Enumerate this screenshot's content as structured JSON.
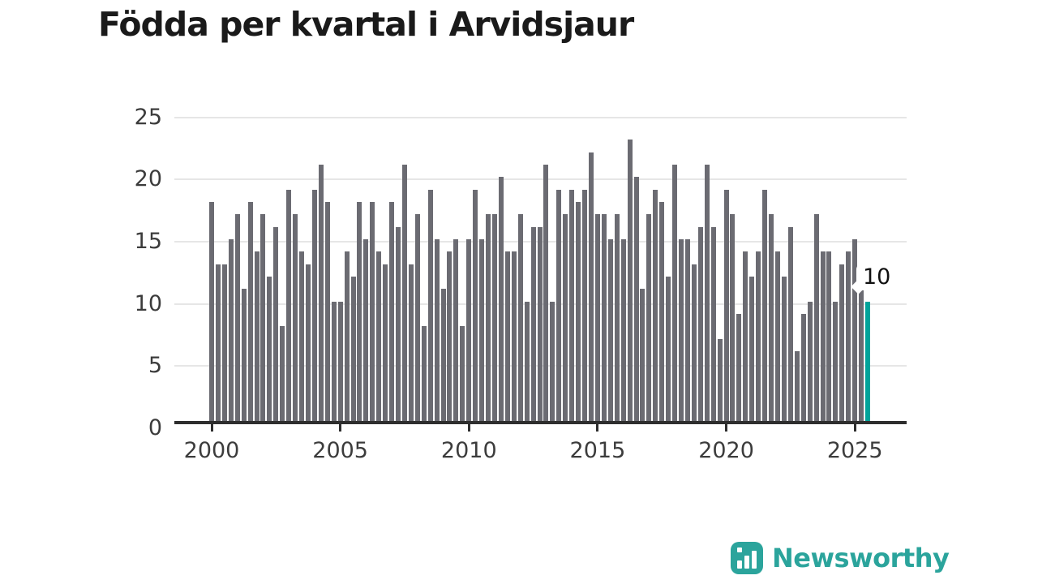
{
  "title": "Födda per kvartal i Arvidsjaur",
  "annotation": {
    "label": "10"
  },
  "logo": {
    "text": "Newsworthy"
  },
  "colors": {
    "bar": "#6b6b72",
    "highlight": "#00a39a",
    "brand": "#2ba49c",
    "axis": "#2e2e2e",
    "grid": "#e6e6e6"
  },
  "chart_data": {
    "type": "bar",
    "title": "Födda per kvartal i Arvidsjaur",
    "x_start": "2000 Q1",
    "x_end": "2025 Q3",
    "frequency": "quarterly",
    "xticks": [
      "2000",
      "2005",
      "2010",
      "2015",
      "2020",
      "2025"
    ],
    "yticks": [
      25,
      20,
      15,
      10,
      5,
      0
    ],
    "ylim": [
      0,
      25
    ],
    "grid": "horizontal",
    "legend": "none",
    "highlighted_last_bar": {
      "period": "2025 Q3",
      "value": 10
    },
    "series": [
      {
        "name": "Födda",
        "values": [
          18,
          13,
          13,
          15,
          17,
          11,
          18,
          14,
          17,
          12,
          16,
          8,
          19,
          17,
          14,
          13,
          19,
          21,
          18,
          10,
          10,
          14,
          12,
          18,
          15,
          18,
          14,
          13,
          18,
          16,
          21,
          13,
          17,
          8,
          19,
          15,
          11,
          14,
          15,
          8,
          15,
          19,
          15,
          17,
          17,
          20,
          14,
          14,
          17,
          10,
          16,
          16,
          21,
          10,
          19,
          17,
          19,
          18,
          19,
          22,
          17,
          17,
          15,
          17,
          15,
          23,
          20,
          11,
          17,
          19,
          18,
          12,
          21,
          15,
          15,
          13,
          16,
          21,
          16,
          7,
          19,
          17,
          9,
          14,
          12,
          14,
          19,
          17,
          14,
          12,
          16,
          6,
          9,
          10,
          17,
          14,
          14,
          10,
          13,
          14,
          15,
          11,
          10
        ]
      }
    ]
  }
}
